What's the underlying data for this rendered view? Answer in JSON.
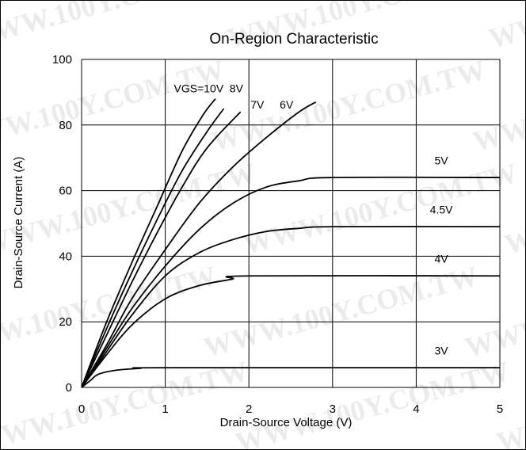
{
  "chart_data": {
    "type": "line",
    "title": "On-Region Characteristic",
    "xlabel": "Drain-Source Voltage (V)",
    "ylabel": "Drain-Source Current (A)",
    "xlim": [
      0,
      5
    ],
    "ylim": [
      0,
      100
    ],
    "xticks": [
      "0",
      "1",
      "2",
      "3",
      "4",
      "5"
    ],
    "yticks": [
      "0",
      "20",
      "40",
      "60",
      "80",
      "100"
    ],
    "grid": true,
    "watermark": "WWW.100Y.COM.TW",
    "series": [
      {
        "name": "VGS=10V",
        "points": [
          [
            0,
            0
          ],
          [
            0.3,
            20
          ],
          [
            0.6,
            38
          ],
          [
            0.9,
            55
          ],
          [
            1.2,
            72
          ],
          [
            1.45,
            83
          ],
          [
            1.6,
            88
          ]
        ]
      },
      {
        "name": "8V",
        "points": [
          [
            0,
            0
          ],
          [
            0.3,
            18
          ],
          [
            0.6,
            35
          ],
          [
            0.9,
            51
          ],
          [
            1.2,
            66
          ],
          [
            1.5,
            78
          ],
          [
            1.7,
            85
          ]
        ]
      },
      {
        "name": "7V",
        "points": [
          [
            0,
            0
          ],
          [
            0.3,
            16
          ],
          [
            0.6,
            32
          ],
          [
            0.9,
            47
          ],
          [
            1.2,
            61
          ],
          [
            1.5,
            73
          ],
          [
            1.9,
            84
          ]
        ]
      },
      {
        "name": "6V",
        "points": [
          [
            0,
            0
          ],
          [
            0.3,
            13
          ],
          [
            0.6,
            27
          ],
          [
            1.0,
            42
          ],
          [
            1.4,
            56
          ],
          [
            1.8,
            67
          ],
          [
            2.2,
            76
          ],
          [
            2.6,
            84
          ],
          [
            2.8,
            87
          ]
        ]
      },
      {
        "name": "5V",
        "points": [
          [
            0,
            0
          ],
          [
            0.3,
            12
          ],
          [
            0.6,
            24
          ],
          [
            1.0,
            37
          ],
          [
            1.4,
            48
          ],
          [
            1.8,
            56
          ],
          [
            2.2,
            61
          ],
          [
            2.6,
            63
          ],
          [
            3.0,
            64
          ],
          [
            5.0,
            64
          ]
        ]
      },
      {
        "name": "4.5V",
        "points": [
          [
            0,
            0
          ],
          [
            0.3,
            11
          ],
          [
            0.6,
            22
          ],
          [
            1.0,
            34
          ],
          [
            1.4,
            41
          ],
          [
            1.8,
            45
          ],
          [
            2.2,
            47.5
          ],
          [
            2.6,
            48.5
          ],
          [
            3.0,
            49
          ],
          [
            5.0,
            49
          ]
        ]
      },
      {
        "name": "4V",
        "points": [
          [
            0,
            0
          ],
          [
            0.3,
            10
          ],
          [
            0.6,
            19
          ],
          [
            1.0,
            27
          ],
          [
            1.4,
            31
          ],
          [
            1.8,
            33
          ],
          [
            2.0,
            34
          ],
          [
            5.0,
            34
          ]
        ]
      },
      {
        "name": "3V",
        "points": [
          [
            0,
            0
          ],
          [
            0.1,
            2
          ],
          [
            0.2,
            4
          ],
          [
            0.4,
            5.2
          ],
          [
            0.7,
            5.8
          ],
          [
            1.0,
            6.0
          ],
          [
            5.0,
            6.0
          ]
        ]
      }
    ],
    "series_labels": [
      {
        "text": "VGS=10V",
        "x": 1.4,
        "y": 90
      },
      {
        "text": "8V",
        "x": 1.85,
        "y": 90
      },
      {
        "text": "7V",
        "x": 2.1,
        "y": 85
      },
      {
        "text": "6V",
        "x": 2.45,
        "y": 85
      },
      {
        "text": "5V",
        "x": 4.3,
        "y": 68
      },
      {
        "text": "4.5V",
        "x": 4.3,
        "y": 53
      },
      {
        "text": "4V",
        "x": 4.3,
        "y": 38
      },
      {
        "text": "3V",
        "x": 4.3,
        "y": 10
      }
    ]
  }
}
